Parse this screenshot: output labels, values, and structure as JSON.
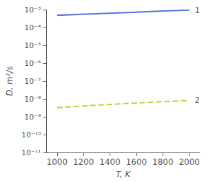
{
  "chart_data": {
    "type": "line",
    "xlabel": "T, K",
    "ylabel": "D, m²/s",
    "log": "y",
    "grid": false,
    "xlim": [
      920,
      2080
    ],
    "ylim": [
      1e-11,
      0.001
    ],
    "xticks": [
      1000,
      1200,
      1400,
      1600,
      1800,
      2000
    ],
    "yticks": [
      {
        "value": 1e-11,
        "label": "10⁻¹¹"
      },
      {
        "value": 1e-10,
        "label": "10⁻¹⁰"
      },
      {
        "value": 1e-09,
        "label": "10⁻⁹"
      },
      {
        "value": 1e-08,
        "label": "10⁻⁸"
      },
      {
        "value": 1e-07,
        "label": "10⁻⁷"
      },
      {
        "value": 1e-06,
        "label": "10⁻⁶"
      },
      {
        "value": 1e-05,
        "label": "10⁻⁵"
      },
      {
        "value": 0.0001,
        "label": "10⁻⁴"
      },
      {
        "value": 0.001,
        "label": "10⁻³"
      }
    ],
    "x": [
      1000,
      1200,
      1400,
      1600,
      1800,
      2000
    ],
    "series": [
      {
        "values": [
          0.00048,
          0.00055,
          0.00063,
          0.00072,
          0.00083,
          0.00094
        ],
        "line_style": "solid"
      },
      {
        "values": [
          3.2e-09,
          4e-09,
          4.9e-09,
          5.9e-09,
          7e-09,
          8.2e-09
        ],
        "line_style": "dashed"
      }
    ],
    "annotations": [
      {
        "text": "1",
        "x": 2030,
        "y": 0.00094
      },
      {
        "text": "2",
        "x": 2030,
        "y": 8.2e-09
      }
    ]
  }
}
